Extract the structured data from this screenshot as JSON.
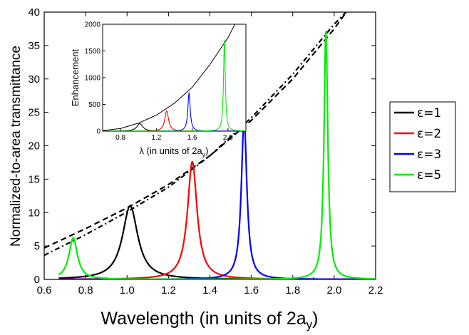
{
  "chart_data": {
    "main": {
      "type": "line",
      "xlabel": "Wavelength (in units of 2a",
      "xlabel_subscript": "y",
      "xlabel_close": ")",
      "ylabel": "Normalized-to-area transmittance",
      "xlim": [
        0.6,
        2.2
      ],
      "ylim": [
        0,
        40
      ],
      "x_ticks": [
        "0.6",
        "0.8",
        "1.0",
        "1.2",
        "1.4",
        "1.6",
        "1.8",
        "2.0",
        "2.2"
      ],
      "y_ticks": [
        "0",
        "5",
        "10",
        "15",
        "20",
        "25",
        "30",
        "35",
        "40"
      ],
      "grid": false,
      "series": [
        {
          "name": "ε=1",
          "color": "#000000",
          "kind": "lorentzian",
          "center": 1.015,
          "peak": 11.0,
          "width": 0.045,
          "x_range": [
            0.67,
            2.2
          ]
        },
        {
          "name": "ε=2",
          "color": "#ff0000",
          "kind": "lorentzian",
          "center": 1.315,
          "peak": 17.6,
          "width": 0.028,
          "x_range": [
            0.67,
            2.2
          ]
        },
        {
          "name": "ε=3",
          "color": "#0000ff",
          "kind": "lorentzian",
          "center": 1.565,
          "peak": 24.0,
          "width": 0.016,
          "x_range": [
            0.67,
            2.2
          ]
        },
        {
          "name": "ε=5",
          "color": "#00ee00",
          "kind": "lorentzian",
          "center": 1.96,
          "peak": 37.2,
          "width": 0.011,
          "x_range": [
            0.67,
            2.2
          ],
          "second_peak": {
            "center": 0.74,
            "peak": 6.2,
            "width": 0.025
          }
        }
      ],
      "envelopes": [
        {
          "style": "dashed",
          "x": [
            0.6,
            0.8,
            1.0,
            1.2,
            1.4,
            1.6,
            1.8,
            2.0,
            2.07
          ],
          "y": [
            4.7,
            7.6,
            10.7,
            14.2,
            18.5,
            23.8,
            30.0,
            37.5,
            40.5
          ]
        },
        {
          "style": "dash-dot",
          "x": [
            0.6,
            0.8,
            1.0,
            1.2,
            1.4,
            1.6,
            1.8,
            2.0,
            2.09
          ],
          "y": [
            3.6,
            6.7,
            10.1,
            13.8,
            18.5,
            24.2,
            30.7,
            38.2,
            41.0
          ]
        }
      ],
      "legend": {
        "position": "right",
        "entries": [
          "ε=1",
          "ε=2",
          "ε=3",
          "ε=5"
        ]
      }
    },
    "inset": {
      "type": "line",
      "xlabel": "λ (in units of 2a",
      "xlabel_subscript": "y",
      "xlabel_close": ")",
      "ylabel": "Enhancement",
      "xlim": [
        0.6,
        2.2
      ],
      "ylim": [
        0,
        2000
      ],
      "x_ticks": [
        "0.8",
        "1.2",
        "1.6",
        "2.0"
      ],
      "y_ticks": [
        "0",
        "500",
        "1000",
        "1500",
        "2000"
      ],
      "envelope": {
        "x": [
          0.6,
          0.8,
          1.0,
          1.2,
          1.4,
          1.6,
          1.8,
          2.0,
          2.2
        ],
        "y": [
          10,
          50,
          150,
          300,
          520,
          820,
          1250,
          1750,
          2400
        ]
      },
      "series": [
        {
          "name": "ε=1",
          "color": "#000000",
          "center": 1.015,
          "peak": 140,
          "width": 0.04
        },
        {
          "name": "ε=2",
          "color": "#ff0000",
          "center": 1.315,
          "peak": 380,
          "width": 0.025
        },
        {
          "name": "ε=3",
          "color": "#0000ff",
          "center": 1.565,
          "peak": 710,
          "width": 0.016
        },
        {
          "name": "ε=5",
          "color": "#00ee00",
          "center": 1.96,
          "peak": 1700,
          "width": 0.012
        }
      ]
    }
  }
}
